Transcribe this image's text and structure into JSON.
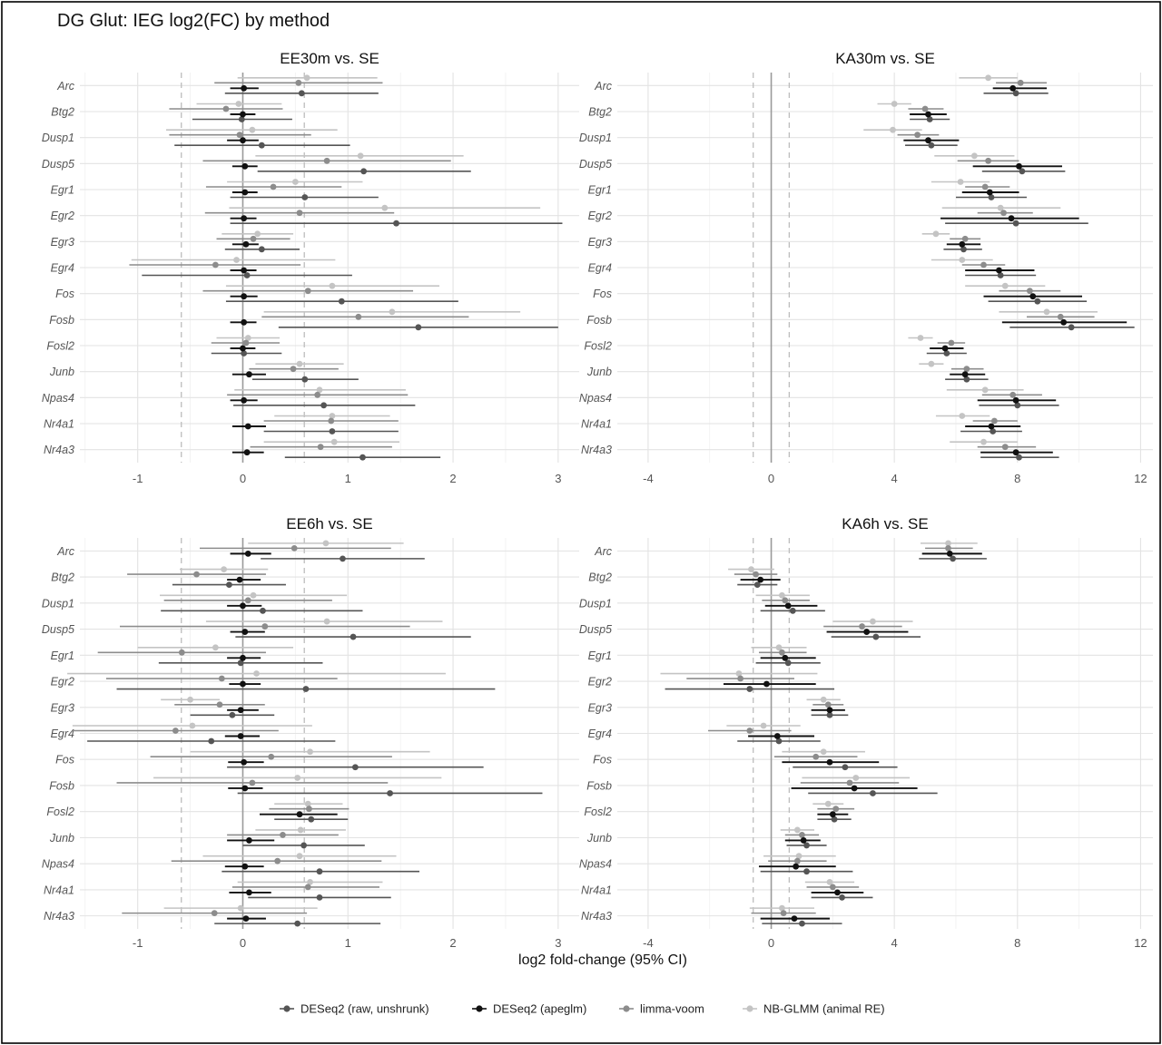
{
  "title": "DG Glut: IEG log2(FC) by method",
  "xlabel": "log2 fold-change (95% CI)",
  "genes": [
    "Arc",
    "Btg2",
    "Dusp1",
    "Dusp5",
    "Egr1",
    "Egr2",
    "Egr3",
    "Egr4",
    "Fos",
    "Fosb",
    "Fosl2",
    "Junb",
    "Npas4",
    "Nr4a1",
    "Nr4a3"
  ],
  "methods": [
    {
      "name": "DESeq2 (raw, unshrunk)",
      "color": "#555555"
    },
    {
      "name": "DESeq2 (apeglm)",
      "color": "#111111"
    },
    {
      "name": "limma-voom",
      "color": "#8c8c8c"
    },
    {
      "name": "NB-GLMM (animal RE)",
      "color": "#c4c4c4"
    }
  ],
  "threshold": 0.585,
  "chart_data": [
    {
      "type": "forest",
      "title": "EE30m vs. SE",
      "xlim": [
        -1.55,
        3.2
      ],
      "xticks": [
        -1,
        0,
        1,
        2,
        3
      ],
      "series": [
        {
          "name": "DESeq2 (raw, unshrunk)",
          "estimate": [
            0.56,
            -0.01,
            0.18,
            1.15,
            0.59,
            1.46,
            0.18,
            0.04,
            0.94,
            1.67,
            0.01,
            0.59,
            0.77,
            0.85,
            1.14
          ],
          "lower": [
            -0.17,
            -0.48,
            -0.65,
            0.14,
            -0.12,
            -0.12,
            -0.17,
            -0.96,
            -0.16,
            0.34,
            -0.3,
            0.09,
            -0.09,
            0.2,
            0.4
          ],
          "upper": [
            1.29,
            0.47,
            1.02,
            2.17,
            1.29,
            3.04,
            0.54,
            1.04,
            2.05,
            3.0,
            0.37,
            1.1,
            1.64,
            1.48,
            1.88
          ]
        },
        {
          "name": "DESeq2 (apeglm)",
          "estimate": [
            0.01,
            0.0,
            0.0,
            0.02,
            0.02,
            0.01,
            0.03,
            0.01,
            0.01,
            0.01,
            0.0,
            0.06,
            0.01,
            0.05,
            0.04
          ],
          "lower": [
            -0.12,
            -0.12,
            -0.15,
            -0.1,
            -0.1,
            -0.12,
            -0.1,
            -0.12,
            -0.12,
            -0.12,
            -0.12,
            -0.1,
            -0.12,
            -0.1,
            -0.1
          ],
          "upper": [
            0.15,
            0.12,
            0.15,
            0.14,
            0.14,
            0.13,
            0.15,
            0.13,
            0.14,
            0.13,
            0.12,
            0.22,
            0.14,
            0.22,
            0.2
          ]
        },
        {
          "name": "limma-voom",
          "estimate": [
            0.53,
            -0.16,
            -0.03,
            0.8,
            0.29,
            0.54,
            0.1,
            -0.26,
            0.62,
            1.1,
            0.03,
            0.48,
            0.71,
            0.84,
            0.74
          ],
          "lower": [
            -0.27,
            -0.7,
            -0.7,
            -0.38,
            -0.35,
            -0.36,
            -0.25,
            -1.08,
            -0.38,
            0.18,
            -0.3,
            0.06,
            -0.15,
            0.2,
            0.07
          ],
          "upper": [
            1.33,
            0.38,
            0.65,
            1.98,
            0.94,
            1.44,
            0.45,
            0.55,
            1.62,
            2.15,
            0.35,
            0.91,
            1.57,
            1.48,
            1.42
          ]
        },
        {
          "name": "NB-GLMM (animal RE)",
          "estimate": [
            0.61,
            -0.04,
            0.09,
            1.12,
            0.5,
            1.35,
            0.14,
            -0.06,
            0.85,
            1.42,
            0.05,
            0.54,
            0.73,
            0.85,
            0.87
          ],
          "lower": [
            -0.05,
            -0.44,
            -0.73,
            0.12,
            -0.15,
            -0.13,
            -0.2,
            -1.06,
            -0.16,
            0.2,
            -0.25,
            0.12,
            -0.08,
            0.3,
            0.2
          ],
          "upper": [
            1.28,
            0.37,
            0.9,
            2.1,
            1.14,
            2.83,
            0.48,
            0.88,
            1.87,
            2.64,
            0.35,
            0.96,
            1.55,
            1.4,
            1.49
          ]
        }
      ]
    },
    {
      "type": "forest",
      "title": "KA30m vs. SE",
      "xlim": [
        -5.0,
        12.4
      ],
      "xticks": [
        -4,
        0,
        4,
        8,
        12
      ],
      "series": [
        {
          "name": "DESeq2 (raw, unshrunk)",
          "estimate": [
            7.95,
            5.15,
            5.2,
            8.15,
            7.15,
            7.95,
            6.25,
            7.45,
            8.65,
            9.75,
            5.7,
            6.35,
            8.0,
            7.2,
            8.05
          ],
          "lower": [
            6.9,
            4.5,
            4.35,
            6.85,
            6.0,
            5.65,
            5.6,
            6.3,
            7.05,
            7.75,
            5.05,
            5.65,
            6.75,
            6.15,
            6.8
          ],
          "upper": [
            9.0,
            5.8,
            6.05,
            9.55,
            8.3,
            10.3,
            6.85,
            8.6,
            10.25,
            11.8,
            6.35,
            7.05,
            9.35,
            8.15,
            9.35
          ]
        },
        {
          "name": "DESeq2 (apeglm)",
          "estimate": [
            7.85,
            5.1,
            5.1,
            8.05,
            7.1,
            7.8,
            6.2,
            7.4,
            8.5,
            9.5,
            5.65,
            6.3,
            7.95,
            7.15,
            7.95
          ],
          "lower": [
            7.2,
            4.5,
            4.3,
            6.55,
            6.2,
            5.5,
            5.7,
            6.3,
            6.9,
            7.5,
            5.15,
            5.8,
            6.7,
            6.3,
            6.8
          ],
          "upper": [
            8.95,
            5.7,
            6.1,
            9.45,
            8.05,
            10.0,
            6.8,
            8.55,
            10.1,
            11.55,
            6.25,
            6.95,
            9.25,
            8.1,
            9.15
          ]
        },
        {
          "name": "limma-voom",
          "estimate": [
            8.1,
            5.0,
            4.75,
            7.05,
            6.95,
            7.55,
            6.3,
            6.9,
            8.4,
            9.4,
            5.85,
            6.35,
            7.85,
            7.25,
            7.6
          ],
          "lower": [
            7.3,
            4.45,
            4.1,
            6.05,
            6.3,
            6.7,
            5.8,
            6.2,
            7.4,
            8.3,
            5.4,
            5.85,
            6.85,
            6.55,
            6.7
          ],
          "upper": [
            8.95,
            5.6,
            5.45,
            8.05,
            7.75,
            8.5,
            6.8,
            7.6,
            9.4,
            10.5,
            6.3,
            6.9,
            8.8,
            8.0,
            8.6
          ]
        },
        {
          "name": "NB-GLMM (animal RE)",
          "estimate": [
            7.05,
            4.0,
            3.95,
            6.6,
            6.15,
            7.45,
            5.35,
            6.2,
            7.6,
            8.95,
            4.85,
            5.2,
            6.95,
            6.2,
            6.9
          ],
          "lower": [
            6.1,
            3.45,
            3.0,
            5.3,
            5.2,
            5.55,
            4.9,
            5.2,
            6.3,
            7.4,
            4.45,
            4.8,
            5.7,
            5.35,
            5.8
          ],
          "upper": [
            8.0,
            4.55,
            4.9,
            7.9,
            7.1,
            9.4,
            5.8,
            7.2,
            8.9,
            10.6,
            5.25,
            5.6,
            8.2,
            7.1,
            8.0
          ]
        }
      ]
    },
    {
      "type": "forest",
      "title": "EE6h vs. SE",
      "xlim": [
        -1.55,
        3.2
      ],
      "xticks": [
        -1,
        0,
        1,
        2,
        3
      ],
      "series": [
        {
          "name": "DESeq2 (raw, unshrunk)",
          "estimate": [
            0.95,
            -0.13,
            0.19,
            1.05,
            -0.02,
            0.6,
            -0.1,
            -0.3,
            1.07,
            1.4,
            0.65,
            0.58,
            0.73,
            0.73,
            0.52
          ],
          "lower": [
            0.17,
            -0.67,
            -0.78,
            -0.07,
            -0.8,
            -1.2,
            -0.5,
            -1.48,
            -0.15,
            -0.05,
            0.3,
            0.0,
            -0.2,
            0.05,
            -0.27
          ],
          "upper": [
            1.73,
            0.41,
            1.14,
            2.17,
            0.76,
            2.4,
            0.3,
            0.88,
            2.29,
            2.85,
            1.0,
            1.16,
            1.68,
            1.41,
            1.31
          ]
        },
        {
          "name": "DESeq2 (apeglm)",
          "estimate": [
            0.05,
            -0.03,
            0.0,
            0.02,
            0.0,
            0.0,
            -0.02,
            -0.02,
            0.01,
            0.02,
            0.54,
            0.06,
            0.02,
            0.06,
            0.03
          ],
          "lower": [
            -0.12,
            -0.15,
            -0.15,
            -0.12,
            -0.15,
            -0.13,
            -0.15,
            -0.17,
            -0.14,
            -0.14,
            0.16,
            -0.15,
            -0.17,
            -0.13,
            -0.15
          ],
          "upper": [
            0.27,
            0.17,
            0.18,
            0.21,
            0.17,
            0.17,
            0.15,
            0.16,
            0.2,
            0.19,
            0.9,
            0.3,
            0.2,
            0.27,
            0.22
          ]
        },
        {
          "name": "limma-voom",
          "estimate": [
            0.49,
            -0.44,
            0.05,
            0.21,
            -0.58,
            -0.2,
            -0.22,
            -0.64,
            0.27,
            0.09,
            0.63,
            0.38,
            0.33,
            0.62,
            -0.27
          ],
          "lower": [
            -0.41,
            -1.1,
            -0.75,
            -1.17,
            -1.38,
            -1.3,
            -0.65,
            -1.62,
            -0.88,
            -1.2,
            0.25,
            -0.15,
            -0.68,
            -0.1,
            -1.15
          ],
          "upper": [
            1.41,
            0.22,
            0.85,
            1.59,
            0.22,
            0.9,
            0.21,
            0.34,
            1.42,
            1.38,
            1.01,
            0.91,
            1.32,
            1.3,
            0.61
          ]
        },
        {
          "name": "NB-GLMM (animal RE)",
          "estimate": [
            0.79,
            -0.18,
            0.1,
            0.8,
            -0.26,
            0.13,
            -0.5,
            -0.48,
            0.64,
            0.52,
            0.62,
            0.55,
            0.54,
            0.64,
            -0.02
          ],
          "lower": [
            0.05,
            -0.6,
            -0.79,
            -0.35,
            -1.0,
            -1.67,
            -0.78,
            -1.62,
            -0.5,
            -0.85,
            0.3,
            0.12,
            -0.38,
            -0.05,
            -0.75
          ],
          "upper": [
            1.53,
            0.24,
            0.99,
            1.9,
            0.48,
            1.93,
            -0.22,
            0.66,
            1.78,
            1.89,
            0.95,
            0.98,
            1.46,
            1.33,
            0.71
          ]
        }
      ]
    },
    {
      "type": "forest",
      "title": "KA6h vs. SE",
      "xlim": [
        -5.0,
        12.4
      ],
      "xticks": [
        -4,
        0,
        4,
        8,
        12
      ],
      "series": [
        {
          "name": "DESeq2 (raw, unshrunk)",
          "estimate": [
            5.9,
            -0.45,
            0.7,
            3.4,
            0.55,
            -0.7,
            1.9,
            0.25,
            2.4,
            3.3,
            2.05,
            1.15,
            1.15,
            2.3,
            1.0
          ],
          "lower": [
            4.8,
            -1.1,
            -0.35,
            1.95,
            -0.5,
            -3.45,
            1.3,
            -1.1,
            0.7,
            1.2,
            1.5,
            0.5,
            -0.35,
            1.3,
            -0.3
          ],
          "upper": [
            7.0,
            0.2,
            1.75,
            4.85,
            1.6,
            2.05,
            2.5,
            1.6,
            4.1,
            5.4,
            2.6,
            1.8,
            2.65,
            3.3,
            2.3
          ]
        },
        {
          "name": "DESeq2 (apeglm)",
          "estimate": [
            5.8,
            -0.35,
            0.55,
            3.1,
            0.45,
            -0.15,
            1.9,
            0.2,
            1.9,
            2.7,
            2.0,
            1.05,
            0.8,
            2.15,
            0.75
          ],
          "lower": [
            4.9,
            -1.0,
            -0.2,
            1.8,
            -0.35,
            -1.55,
            1.3,
            -0.75,
            0.35,
            0.65,
            1.5,
            0.45,
            -0.4,
            1.3,
            -0.35
          ],
          "upper": [
            6.85,
            0.3,
            1.5,
            4.45,
            1.45,
            1.45,
            2.4,
            1.4,
            3.5,
            4.75,
            2.5,
            1.6,
            2.1,
            3.0,
            1.9
          ]
        },
        {
          "name": "limma-voom",
          "estimate": [
            5.75,
            -0.5,
            0.45,
            2.95,
            0.35,
            -1.0,
            1.85,
            -0.7,
            1.45,
            2.55,
            2.1,
            1.0,
            0.85,
            2.0,
            0.4
          ],
          "lower": [
            5.0,
            -1.2,
            -0.3,
            1.7,
            -0.4,
            -2.75,
            1.35,
            -2.05,
            0.1,
            0.95,
            1.5,
            0.45,
            -0.1,
            1.15,
            -0.65
          ],
          "upper": [
            6.55,
            0.2,
            1.25,
            4.25,
            1.15,
            0.75,
            2.35,
            0.65,
            2.8,
            4.15,
            2.7,
            1.55,
            1.8,
            2.85,
            1.45
          ]
        },
        {
          "name": "NB-GLMM (animal RE)",
          "estimate": [
            5.75,
            -0.65,
            0.35,
            3.3,
            0.25,
            -1.05,
            1.7,
            -0.25,
            1.7,
            2.75,
            1.85,
            0.85,
            0.9,
            1.9,
            0.35
          ],
          "lower": [
            4.85,
            -1.4,
            -0.5,
            2.0,
            -0.65,
            -3.6,
            1.15,
            -1.45,
            0.35,
            1.0,
            1.35,
            0.3,
            -0.25,
            1.1,
            -0.7
          ],
          "upper": [
            6.7,
            0.1,
            1.25,
            4.6,
            1.15,
            1.5,
            2.25,
            0.95,
            3.05,
            4.5,
            2.35,
            1.4,
            2.1,
            2.7,
            1.4
          ]
        }
      ]
    }
  ]
}
